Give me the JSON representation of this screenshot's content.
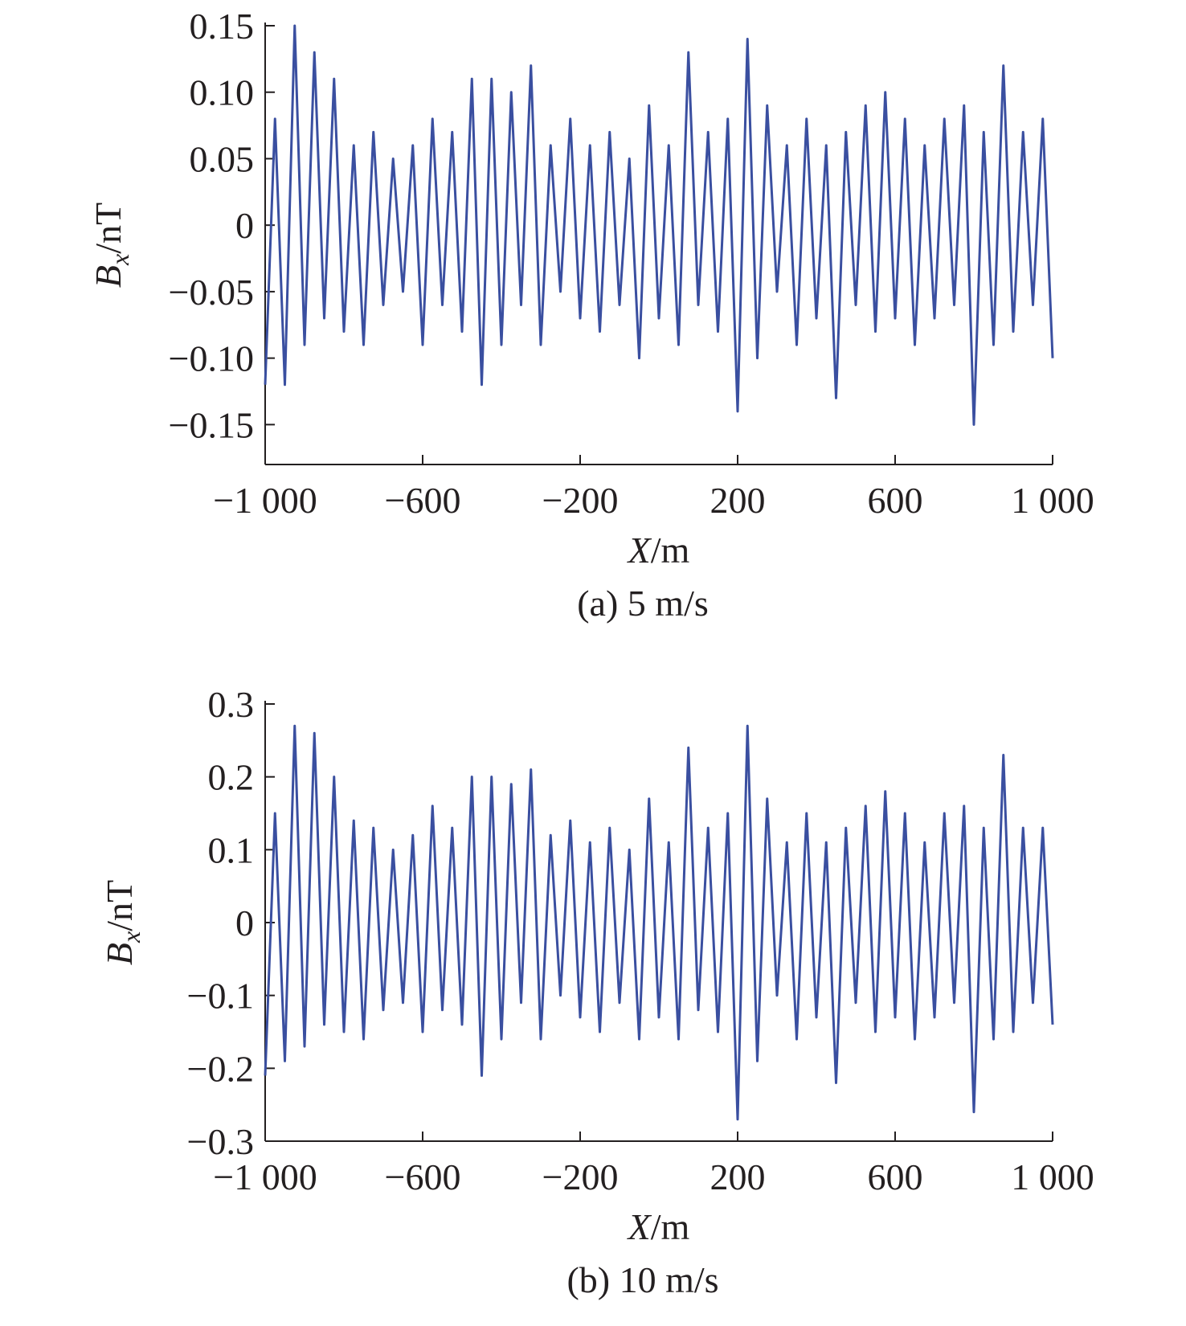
{
  "chart_data": [
    {
      "type": "line",
      "caption": "(a) 5 m/s",
      "xlabel": {
        "symbol": "X",
        "unit": "/m"
      },
      "ylabel": {
        "symbol": "B",
        "subscript": "x",
        "unit": "/nT"
      },
      "xlim": [
        -1000,
        1000
      ],
      "xticks": [
        {
          "value": -1000,
          "label": "−1 000"
        },
        {
          "value": -600,
          "label": "−600"
        },
        {
          "value": -200,
          "label": "−200"
        },
        200,
        600,
        {
          "value": 1000,
          "label": "1 000"
        }
      ],
      "ylim": [
        -0.18,
        0.15
      ],
      "yticks": [
        {
          "value": 0.15,
          "label": "0.15"
        },
        {
          "value": 0.1,
          "label": "0.10"
        },
        {
          "value": 0.05,
          "label": "0.05"
        },
        0,
        {
          "value": -0.05,
          "label": "−0.05"
        },
        {
          "value": -0.1,
          "label": "−0.10"
        },
        {
          "value": -0.15,
          "label": "−0.15"
        }
      ],
      "x": [
        -1000,
        -975,
        -950,
        -925,
        -900,
        -875,
        -850,
        -825,
        -800,
        -775,
        -750,
        -725,
        -700,
        -675,
        -650,
        -625,
        -600,
        -575,
        -550,
        -525,
        -500,
        -475,
        -450,
        -425,
        -400,
        -375,
        -350,
        -325,
        -300,
        -275,
        -250,
        -225,
        -200,
        -175,
        -150,
        -125,
        -100,
        -75,
        -50,
        -25,
        0,
        25,
        50,
        75,
        100,
        125,
        150,
        175,
        200,
        225,
        250,
        275,
        300,
        325,
        350,
        375,
        400,
        425,
        450,
        475,
        500,
        525,
        550,
        575,
        600,
        625,
        650,
        675,
        700,
        725,
        750,
        775,
        800,
        825,
        850,
        875,
        900,
        925,
        950,
        975,
        1000
      ],
      "series": [
        {
          "color": "#3a4fa0",
          "values": [
            -0.12,
            0.08,
            -0.12,
            0.15,
            -0.09,
            0.13,
            -0.07,
            0.11,
            -0.08,
            0.06,
            -0.09,
            0.07,
            -0.06,
            0.05,
            -0.05,
            0.06,
            -0.09,
            0.08,
            -0.06,
            0.07,
            -0.08,
            0.11,
            -0.12,
            0.11,
            -0.09,
            0.1,
            -0.06,
            0.12,
            -0.09,
            0.06,
            -0.05,
            0.08,
            -0.07,
            0.06,
            -0.08,
            0.07,
            -0.06,
            0.05,
            -0.1,
            0.09,
            -0.07,
            0.06,
            -0.09,
            0.13,
            -0.06,
            0.07,
            -0.08,
            0.08,
            -0.14,
            0.14,
            -0.1,
            0.09,
            -0.05,
            0.06,
            -0.09,
            0.08,
            -0.07,
            0.06,
            -0.13,
            0.07,
            -0.06,
            0.09,
            -0.08,
            0.1,
            -0.07,
            0.08,
            -0.09,
            0.06,
            -0.07,
            0.08,
            -0.06,
            0.09,
            -0.15,
            0.07,
            -0.09,
            0.12,
            -0.08,
            0.07,
            -0.06,
            0.08,
            -0.1
          ]
        }
      ]
    },
    {
      "type": "line",
      "caption": "(b) 10 m/s",
      "xlabel": {
        "symbol": "X",
        "unit": "/m"
      },
      "ylabel": {
        "symbol": "B",
        "subscript": "x",
        "unit": "/nT"
      },
      "xlim": [
        -1000,
        1000
      ],
      "xticks": [
        {
          "value": -1000,
          "label": "−1 000"
        },
        {
          "value": -600,
          "label": "−600"
        },
        {
          "value": -200,
          "label": "−200"
        },
        200,
        600,
        {
          "value": 1000,
          "label": "1 000"
        }
      ],
      "ylim": [
        -0.3,
        0.3
      ],
      "yticks": [
        0.3,
        0.2,
        0.1,
        0,
        {
          "value": -0.1,
          "label": "−0.1"
        },
        {
          "value": -0.2,
          "label": "−0.2"
        },
        {
          "value": -0.3,
          "label": "−0.3"
        }
      ],
      "x": [
        -1000,
        -975,
        -950,
        -925,
        -900,
        -875,
        -850,
        -825,
        -800,
        -775,
        -750,
        -725,
        -700,
        -675,
        -650,
        -625,
        -600,
        -575,
        -550,
        -525,
        -500,
        -475,
        -450,
        -425,
        -400,
        -375,
        -350,
        -325,
        -300,
        -275,
        -250,
        -225,
        -200,
        -175,
        -150,
        -125,
        -100,
        -75,
        -50,
        -25,
        0,
        25,
        50,
        75,
        100,
        125,
        150,
        175,
        200,
        225,
        250,
        275,
        300,
        325,
        350,
        375,
        400,
        425,
        450,
        475,
        500,
        525,
        550,
        575,
        600,
        625,
        650,
        675,
        700,
        725,
        750,
        775,
        800,
        825,
        850,
        875,
        900,
        925,
        950,
        975,
        1000
      ],
      "series": [
        {
          "color": "#3a4fa0",
          "values": [
            -0.21,
            0.15,
            -0.19,
            0.27,
            -0.17,
            0.26,
            -0.14,
            0.2,
            -0.15,
            0.14,
            -0.16,
            0.13,
            -0.12,
            0.1,
            -0.11,
            0.12,
            -0.15,
            0.16,
            -0.12,
            0.13,
            -0.14,
            0.2,
            -0.21,
            0.2,
            -0.16,
            0.19,
            -0.11,
            0.21,
            -0.16,
            0.12,
            -0.1,
            0.14,
            -0.13,
            0.11,
            -0.15,
            0.13,
            -0.11,
            0.1,
            -0.16,
            0.17,
            -0.13,
            0.11,
            -0.16,
            0.24,
            -0.12,
            0.13,
            -0.15,
            0.15,
            -0.27,
            0.27,
            -0.19,
            0.17,
            -0.1,
            0.11,
            -0.16,
            0.15,
            -0.13,
            0.11,
            -0.22,
            0.13,
            -0.11,
            0.16,
            -0.15,
            0.18,
            -0.13,
            0.15,
            -0.16,
            0.11,
            -0.13,
            0.15,
            -0.11,
            0.16,
            -0.26,
            0.13,
            -0.16,
            0.23,
            -0.15,
            0.13,
            -0.11,
            0.13,
            -0.14
          ]
        }
      ]
    }
  ]
}
